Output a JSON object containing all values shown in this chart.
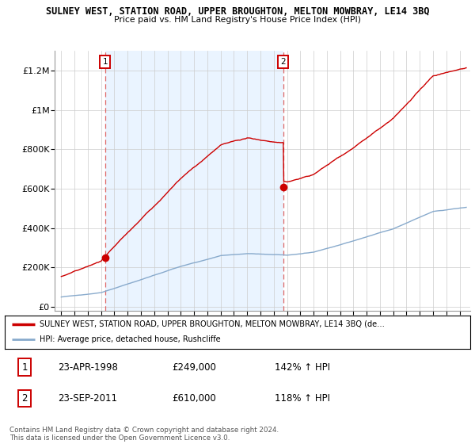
{
  "title1": "SULNEY WEST, STATION ROAD, UPPER BROUGHTON, MELTON MOWBRAY, LE14 3BQ",
  "title2": "Price paid vs. HM Land Registry's House Price Index (HPI)",
  "ytick_vals": [
    0,
    200000,
    400000,
    600000,
    800000,
    1000000,
    1200000
  ],
  "ylabel_ticks": [
    "£0",
    "£200K",
    "£400K",
    "£600K",
    "£800K",
    "£1M",
    "£1.2M"
  ],
  "ylim": [
    -20000,
    1300000
  ],
  "xlim": [
    1994.5,
    2025.8
  ],
  "sale1_x": 1998.31,
  "sale1_price": 249000,
  "sale1_date": "23-APR-1998",
  "sale1_amount": "£249,000",
  "sale1_pct": "142% ↑ HPI",
  "sale2_x": 2011.72,
  "sale2_price": 610000,
  "sale2_date": "23-SEP-2011",
  "sale2_amount": "£610,000",
  "sale2_pct": "118% ↑ HPI",
  "red_color": "#cc0000",
  "blue_color": "#88aacc",
  "blue_fill": "#ddeeff",
  "dashed_color": "#dd6666",
  "legend_line1": "SULNEY WEST, STATION ROAD, UPPER BROUGHTON, MELTON MOWBRAY, LE14 3BQ (de…",
  "legend_line2": "HPI: Average price, detached house, Rushcliffe",
  "footer": "Contains HM Land Registry data © Crown copyright and database right 2024.\nThis data is licensed under the Open Government Licence v3.0.",
  "table_rows": [
    [
      "1",
      "23-APR-1998",
      "£249,000",
      "142% ↑ HPI"
    ],
    [
      "2",
      "23-SEP-2011",
      "£610,000",
      "118% ↑ HPI"
    ]
  ]
}
